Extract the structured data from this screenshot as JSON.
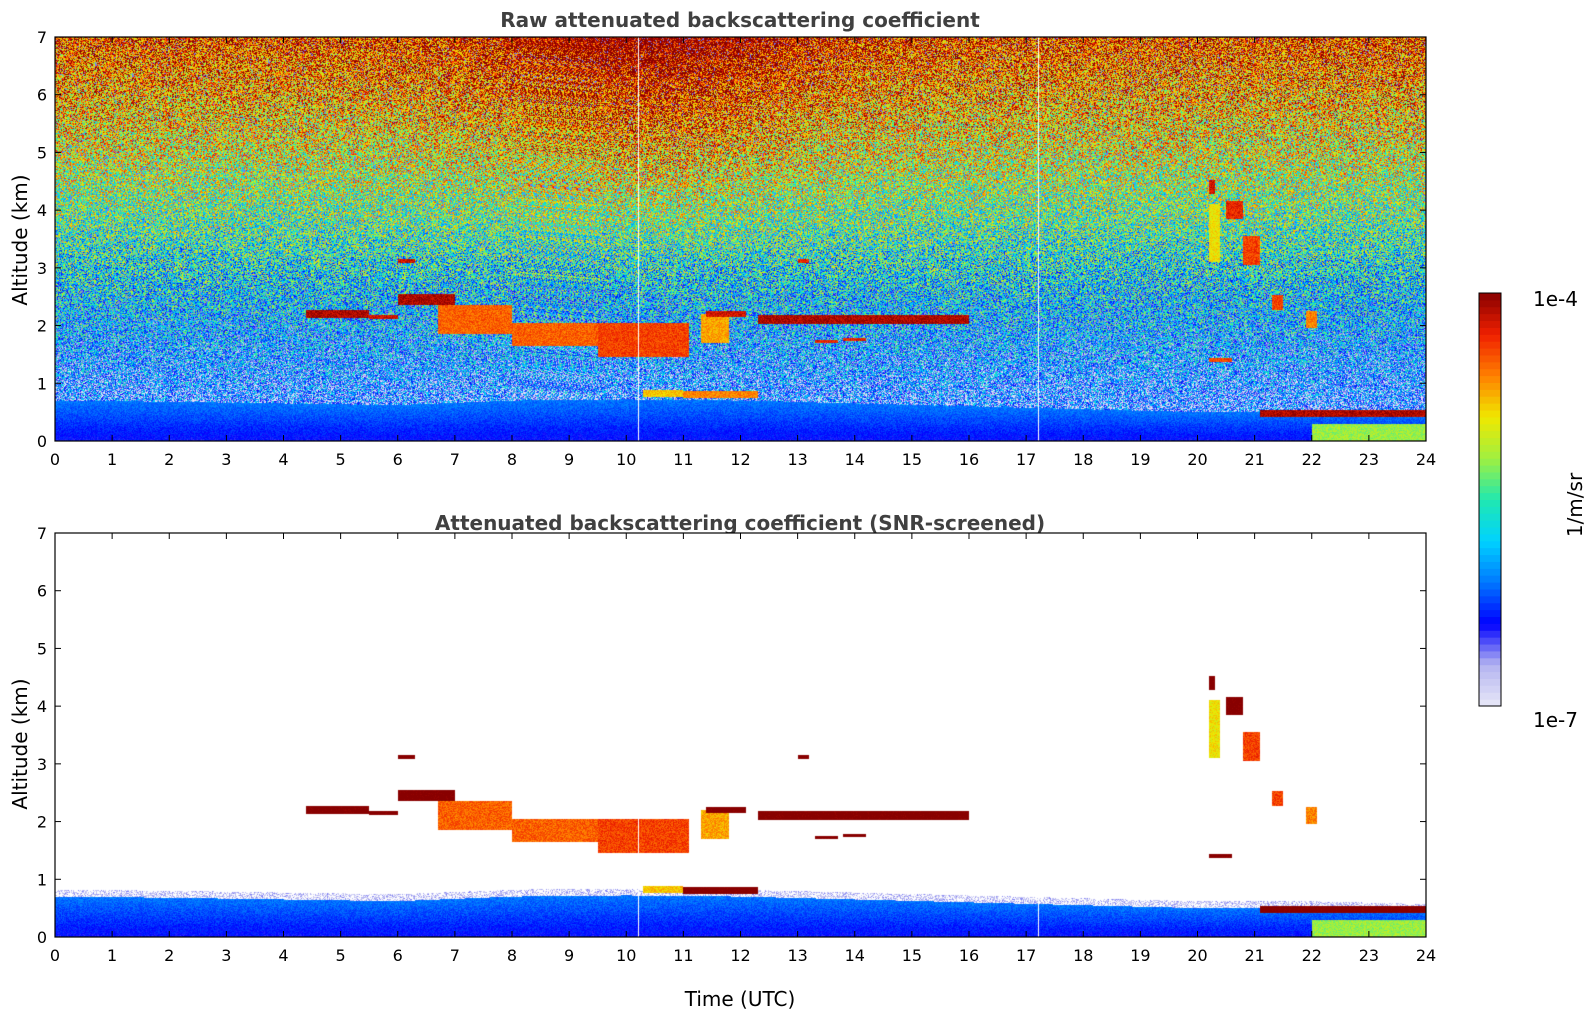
{
  "chart_data": [
    {
      "type": "heatmap",
      "title": "Raw attenuated backscattering coefficient",
      "xlabel": "",
      "ylabel": "Altitude (km)",
      "x_ticks": [
        "0",
        "1",
        "2",
        "3",
        "4",
        "5",
        "6",
        "7",
        "8",
        "9",
        "10",
        "11",
        "12",
        "13",
        "14",
        "15",
        "16",
        "17",
        "18",
        "19",
        "20",
        "21",
        "22",
        "23",
        "24"
      ],
      "y_ticks": [
        "0",
        "1",
        "2",
        "3",
        "4",
        "5",
        "6",
        "7"
      ],
      "xlim": [
        0,
        24
      ],
      "ylim": [
        0,
        7
      ],
      "grid": false,
      "background": "noisy",
      "data_gaps_utc": [
        10.2,
        17.2
      ],
      "features": [
        {
          "kind": "boundary_layer",
          "t": [
            0,
            2,
            4,
            6,
            8,
            10,
            12,
            14,
            16,
            18,
            20,
            22,
            24
          ],
          "top_km": [
            0.7,
            0.68,
            0.65,
            0.62,
            0.7,
            0.72,
            0.7,
            0.65,
            0.6,
            0.55,
            0.5,
            0.5,
            0.45
          ],
          "log10": -6.4
        },
        {
          "kind": "cloud",
          "t0": 4.4,
          "t1": 5.5,
          "alt": 2.2,
          "thick": 0.15,
          "log10": -4.1
        },
        {
          "kind": "cloud",
          "t0": 5.5,
          "t1": 6.0,
          "alt": 2.15,
          "thick": 0.06,
          "log10": -4.2
        },
        {
          "kind": "cloud",
          "t0": 6.0,
          "t1": 6.3,
          "alt": 3.12,
          "thick": 0.06,
          "log10": -4.2
        },
        {
          "kind": "cloud",
          "t0": 6.0,
          "t1": 7.0,
          "alt": 2.45,
          "thick": 0.18,
          "log10": -4.1
        },
        {
          "kind": "cloud",
          "t0": 6.7,
          "t1": 8.0,
          "alt": 2.1,
          "thick": 0.5,
          "log10": -4.5
        },
        {
          "kind": "cloud",
          "t0": 8.0,
          "t1": 9.5,
          "alt": 1.85,
          "thick": 0.4,
          "log10": -4.5
        },
        {
          "kind": "cloud",
          "t0": 9.5,
          "t1": 11.1,
          "alt": 1.75,
          "thick": 0.6,
          "log10": -4.4
        },
        {
          "kind": "cloud",
          "t0": 11.3,
          "t1": 11.8,
          "alt": 1.95,
          "thick": 0.5,
          "log10": -4.7
        },
        {
          "kind": "cloud",
          "t0": 11.4,
          "t1": 12.1,
          "alt": 2.2,
          "thick": 0.12,
          "log10": -4.2
        },
        {
          "kind": "cloud",
          "t0": 12.3,
          "t1": 16.0,
          "alt": 2.1,
          "thick": 0.15,
          "log10": -4.1
        },
        {
          "kind": "cloud",
          "t0": 13.3,
          "t1": 13.7,
          "alt": 1.72,
          "thick": 0.06,
          "log10": -4.3
        },
        {
          "kind": "cloud",
          "t0": 13.8,
          "t1": 14.2,
          "alt": 1.76,
          "thick": 0.06,
          "log10": -4.3
        },
        {
          "kind": "cloud",
          "t0": 13.0,
          "t1": 13.2,
          "alt": 3.12,
          "thick": 0.06,
          "log10": -4.3
        },
        {
          "kind": "cloud",
          "t0": 10.3,
          "t1": 11.0,
          "alt": 0.82,
          "thick": 0.12,
          "log10": -4.8
        },
        {
          "kind": "cloud",
          "t0": 11.0,
          "t1": 12.3,
          "alt": 0.8,
          "thick": 0.12,
          "log10": -4.6
        },
        {
          "kind": "cloud",
          "t0": 20.2,
          "t1": 20.4,
          "alt": 3.6,
          "thick": 1.0,
          "log10": -4.9
        },
        {
          "kind": "cloud",
          "t0": 20.2,
          "t1": 20.3,
          "alt": 4.4,
          "thick": 0.25,
          "log10": -4.2
        },
        {
          "kind": "cloud",
          "t0": 20.5,
          "t1": 20.8,
          "alt": 4.0,
          "thick": 0.3,
          "log10": -4.3
        },
        {
          "kind": "cloud",
          "t0": 20.8,
          "t1": 21.1,
          "alt": 3.3,
          "thick": 0.5,
          "log10": -4.4
        },
        {
          "kind": "cloud",
          "t0": 21.3,
          "t1": 21.5,
          "alt": 2.4,
          "thick": 0.25,
          "log10": -4.4
        },
        {
          "kind": "cloud",
          "t0": 21.9,
          "t1": 22.1,
          "alt": 2.1,
          "thick": 0.3,
          "log10": -4.6
        },
        {
          "kind": "cloud",
          "t0": 20.2,
          "t1": 20.6,
          "alt": 1.4,
          "thick": 0.06,
          "log10": -4.4
        },
        {
          "kind": "cloud",
          "t0": 21.1,
          "t1": 24.0,
          "alt": 0.48,
          "thick": 0.12,
          "log10": -4.1
        },
        {
          "kind": "precip",
          "t0": 22.0,
          "t1": 24.0,
          "alt": 0.15,
          "thick": 0.3,
          "log10": -5.2
        }
      ]
    },
    {
      "type": "heatmap",
      "title": "Attenuated backscattering coefficient (SNR-screened)",
      "xlabel": "Time (UTC)",
      "ylabel": "Altitude (km)",
      "x_ticks": [
        "0",
        "1",
        "2",
        "3",
        "4",
        "5",
        "6",
        "7",
        "8",
        "9",
        "10",
        "11",
        "12",
        "13",
        "14",
        "15",
        "16",
        "17",
        "18",
        "19",
        "20",
        "21",
        "22",
        "23",
        "24"
      ],
      "y_ticks": [
        "0",
        "1",
        "2",
        "3",
        "4",
        "5",
        "6",
        "7"
      ],
      "xlim": [
        0,
        24
      ],
      "ylim": [
        0,
        7
      ],
      "grid": false,
      "background": "white",
      "data_gaps_utc": [
        10.2,
        17.2
      ],
      "features": [
        {
          "kind": "boundary_layer",
          "t": [
            0,
            2,
            4,
            6,
            8,
            10,
            12,
            14,
            16,
            18,
            20,
            22,
            24
          ],
          "top_km": [
            0.7,
            0.68,
            0.65,
            0.62,
            0.7,
            0.72,
            0.7,
            0.65,
            0.6,
            0.55,
            0.5,
            0.5,
            0.45
          ],
          "log10": -6.4
        },
        {
          "kind": "cloud",
          "t0": 4.4,
          "t1": 5.5,
          "alt": 2.2,
          "thick": 0.15,
          "log10": -3.9
        },
        {
          "kind": "cloud",
          "t0": 5.5,
          "t1": 6.0,
          "alt": 2.15,
          "thick": 0.06,
          "log10": -3.9
        },
        {
          "kind": "cloud",
          "t0": 6.0,
          "t1": 6.3,
          "alt": 3.12,
          "thick": 0.06,
          "log10": -3.9
        },
        {
          "kind": "cloud",
          "t0": 6.0,
          "t1": 7.0,
          "alt": 2.45,
          "thick": 0.18,
          "log10": -3.9
        },
        {
          "kind": "cloud",
          "t0": 6.7,
          "t1": 8.0,
          "alt": 2.1,
          "thick": 0.5,
          "log10": -4.5
        },
        {
          "kind": "cloud",
          "t0": 8.0,
          "t1": 9.5,
          "alt": 1.85,
          "thick": 0.4,
          "log10": -4.5
        },
        {
          "kind": "cloud",
          "t0": 9.5,
          "t1": 11.1,
          "alt": 1.75,
          "thick": 0.6,
          "log10": -4.4
        },
        {
          "kind": "cloud",
          "t0": 11.3,
          "t1": 11.8,
          "alt": 1.95,
          "thick": 0.5,
          "log10": -4.7
        },
        {
          "kind": "cloud",
          "t0": 11.4,
          "t1": 12.1,
          "alt": 2.2,
          "thick": 0.12,
          "log10": -3.9
        },
        {
          "kind": "cloud",
          "t0": 12.3,
          "t1": 16.0,
          "alt": 2.1,
          "thick": 0.15,
          "log10": -3.9
        },
        {
          "kind": "cloud",
          "t0": 13.3,
          "t1": 13.7,
          "alt": 1.72,
          "thick": 0.06,
          "log10": -3.9
        },
        {
          "kind": "cloud",
          "t0": 13.8,
          "t1": 14.2,
          "alt": 1.76,
          "thick": 0.06,
          "log10": -3.9
        },
        {
          "kind": "cloud",
          "t0": 13.0,
          "t1": 13.2,
          "alt": 3.12,
          "thick": 0.06,
          "log10": -3.9
        },
        {
          "kind": "cloud",
          "t0": 10.3,
          "t1": 11.0,
          "alt": 0.82,
          "thick": 0.12,
          "log10": -4.8
        },
        {
          "kind": "cloud",
          "t0": 11.0,
          "t1": 12.3,
          "alt": 0.8,
          "thick": 0.12,
          "log10": -3.9
        },
        {
          "kind": "cloud",
          "t0": 20.2,
          "t1": 20.4,
          "alt": 3.6,
          "thick": 1.0,
          "log10": -4.9
        },
        {
          "kind": "cloud",
          "t0": 20.2,
          "t1": 20.3,
          "alt": 4.4,
          "thick": 0.25,
          "log10": -3.9
        },
        {
          "kind": "cloud",
          "t0": 20.5,
          "t1": 20.8,
          "alt": 4.0,
          "thick": 0.3,
          "log10": -3.9
        },
        {
          "kind": "cloud",
          "t0": 20.8,
          "t1": 21.1,
          "alt": 3.3,
          "thick": 0.5,
          "log10": -4.4
        },
        {
          "kind": "cloud",
          "t0": 21.3,
          "t1": 21.5,
          "alt": 2.4,
          "thick": 0.25,
          "log10": -4.4
        },
        {
          "kind": "cloud",
          "t0": 21.9,
          "t1": 22.1,
          "alt": 2.1,
          "thick": 0.3,
          "log10": -4.6
        },
        {
          "kind": "cloud",
          "t0": 20.2,
          "t1": 20.6,
          "alt": 1.4,
          "thick": 0.06,
          "log10": -3.9
        },
        {
          "kind": "cloud",
          "t0": 21.1,
          "t1": 24.0,
          "alt": 0.48,
          "thick": 0.12,
          "log10": -3.9
        },
        {
          "kind": "precip",
          "t0": 22.0,
          "t1": 24.0,
          "alt": 0.15,
          "thick": 0.3,
          "log10": -5.2
        }
      ]
    }
  ],
  "colorbar": {
    "label": "1/m/sr",
    "min_label": "1e-7",
    "max_label": "1e-4",
    "scale": "log",
    "range_log10": [
      -7,
      -4
    ],
    "colormap": [
      "#e8e8f8",
      "#b4b4f0",
      "#0000ff",
      "#0078ff",
      "#00d2ff",
      "#20e8b0",
      "#a0f040",
      "#f0e800",
      "#ff8000",
      "#f02000",
      "#880000"
    ]
  }
}
